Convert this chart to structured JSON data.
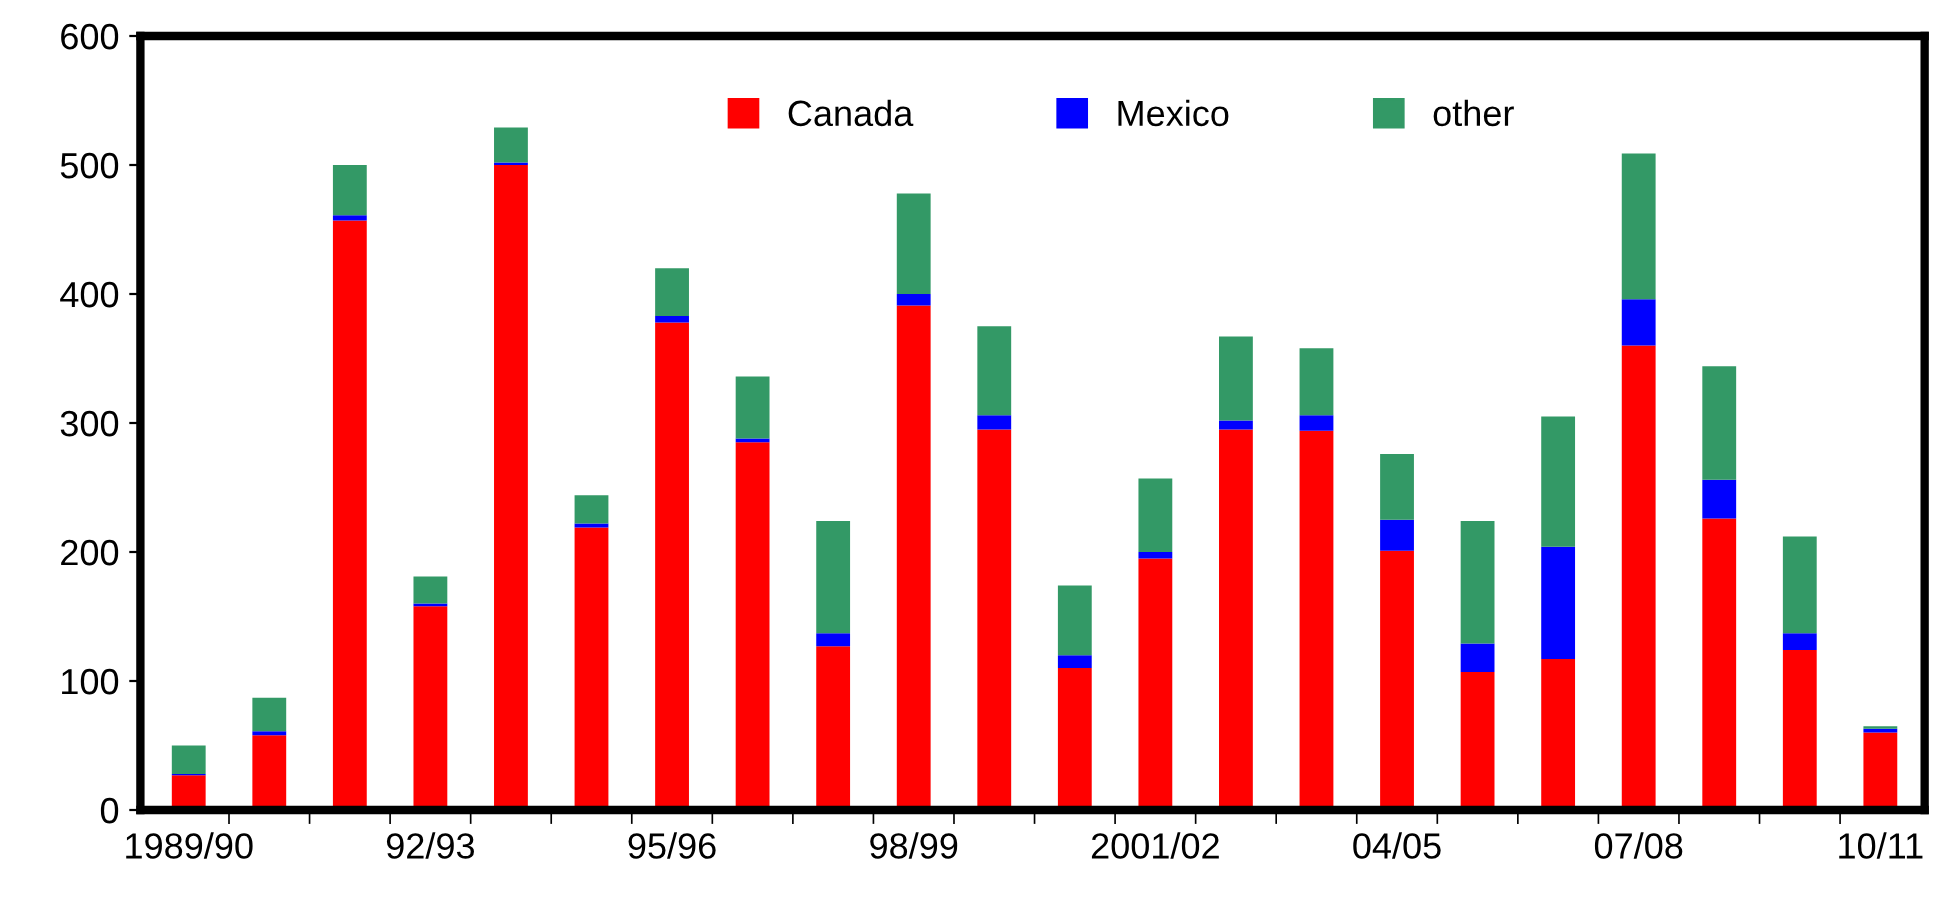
{
  "chart_data": {
    "type": "bar",
    "stacked": true,
    "categories": [
      "1989/90",
      null,
      null,
      "92/93",
      null,
      null,
      "95/96",
      null,
      null,
      "98/99",
      null,
      null,
      "2001/02",
      null,
      null,
      "04/05",
      null,
      null,
      "07/08",
      null,
      null,
      "10/11"
    ],
    "series": [
      {
        "name": "Canada",
        "color": "#ff0000",
        "values": [
          27,
          58,
          457,
          158,
          500,
          219,
          378,
          285,
          127,
          391,
          295,
          110,
          195,
          295,
          294,
          201,
          107,
          117,
          360,
          226,
          124,
          60
        ]
      },
      {
        "name": "Mexico",
        "color": "#0000ff",
        "values": [
          1,
          3,
          4,
          2,
          2,
          3,
          5,
          3,
          10,
          9,
          11,
          10,
          5,
          7,
          12,
          24,
          22,
          87,
          36,
          30,
          13,
          3
        ]
      },
      {
        "name": "other",
        "color": "#339966",
        "values": [
          22,
          26,
          39,
          21,
          27,
          22,
          37,
          48,
          87,
          78,
          69,
          54,
          57,
          65,
          52,
          51,
          95,
          101,
          113,
          88,
          75,
          2
        ]
      }
    ],
    "ylim": [
      0,
      600
    ],
    "yticks": [
      0,
      100,
      200,
      300,
      400,
      500,
      600
    ],
    "grid": false,
    "legend": "top"
  }
}
